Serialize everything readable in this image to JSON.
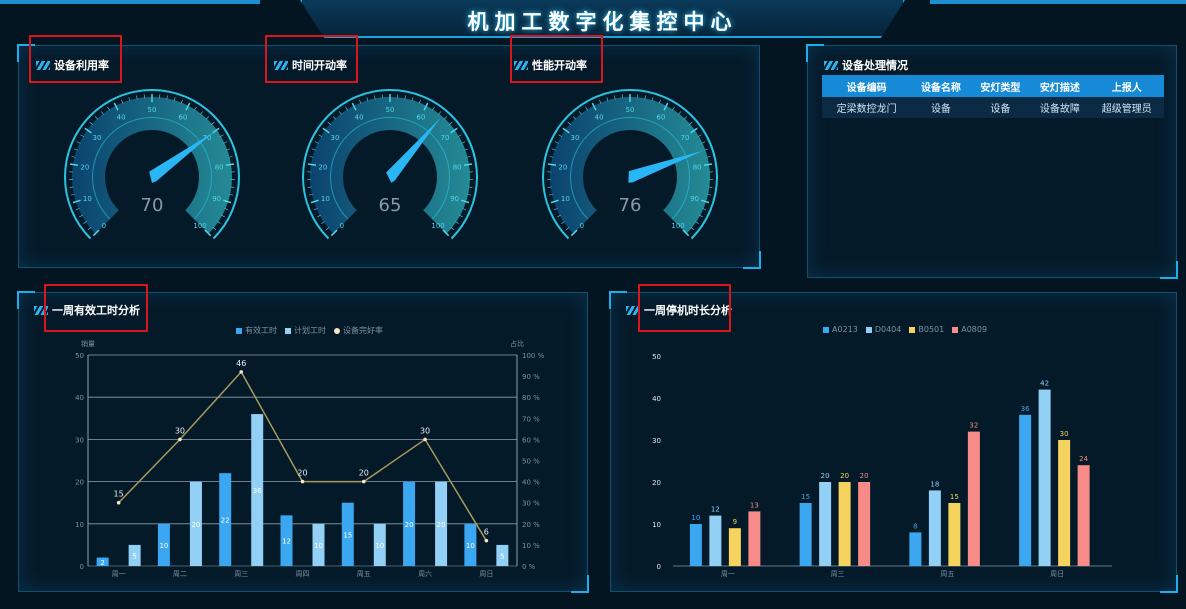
{
  "header": {
    "title": "机加工数字化集控中心"
  },
  "gauges": [
    {
      "title": "设备利用率",
      "value": 70
    },
    {
      "title": "时间开动率",
      "value": 65
    },
    {
      "title": "性能开动率",
      "value": 76
    }
  ],
  "gauge_scale": {
    "min": 0,
    "max": 100,
    "ticks": [
      "0",
      "10",
      "20",
      "30",
      "40",
      "50",
      "60",
      "70",
      "80",
      "90",
      "100"
    ]
  },
  "table": {
    "title": "设备处理情况",
    "headers": [
      "设备编码",
      "设备名称",
      "安灯类型",
      "安灯描述",
      "上报人"
    ],
    "rows": [
      [
        "定梁数控龙门",
        "设备",
        "设备",
        "设备故障",
        "超级管理员"
      ]
    ]
  },
  "colors": {
    "accent": "#1aa3e0",
    "blue": "#3aa7f0",
    "lightblue": "#93d0f5",
    "yellow": "#f5d35e",
    "pink": "#f78b87",
    "line": "#a89a5c"
  },
  "chart_data": [
    {
      "type": "bar",
      "title": "一周有效工时分析",
      "ylabel": "销量",
      "y2label": "占比",
      "categories": [
        "周一",
        "周二",
        "周三",
        "周四",
        "周五",
        "周六",
        "周日"
      ],
      "ylim": [
        0,
        50
      ],
      "y2lim": [
        0,
        100
      ],
      "yticks": [
        "0",
        "10",
        "20",
        "30",
        "40",
        "50"
      ],
      "y2ticks": [
        "0 %",
        "10 %",
        "20 %",
        "30 %",
        "40 %",
        "50 %",
        "60 %",
        "70 %",
        "80 %",
        "90 %",
        "100 %"
      ],
      "grid": true,
      "legend": "top",
      "series": [
        {
          "name": "有效工时",
          "type": "bar",
          "values": [
            2,
            10,
            22,
            12,
            15,
            20,
            10
          ]
        },
        {
          "name": "计划工时",
          "type": "bar",
          "values": [
            5,
            20,
            36,
            10,
            10,
            20,
            5
          ]
        },
        {
          "name": "设备完好率",
          "type": "line",
          "values": [
            15,
            30,
            46,
            20,
            20,
            30,
            6
          ]
        }
      ]
    },
    {
      "type": "bar",
      "title": "一周停机时长分析",
      "categories": [
        "周一",
        "周三",
        "周五",
        "周日"
      ],
      "ylim": [
        0,
        50
      ],
      "yticks": [
        "0",
        "10",
        "20",
        "30",
        "40",
        "50"
      ],
      "grid": false,
      "legend": "top",
      "series": [
        {
          "name": "A0213",
          "values": [
            10,
            15,
            8,
            36
          ]
        },
        {
          "name": "D0404",
          "values": [
            12,
            20,
            18,
            42
          ]
        },
        {
          "name": "B0501",
          "values": [
            9,
            20,
            15,
            30
          ]
        },
        {
          "name": "A0809",
          "values": [
            13,
            20,
            32,
            24
          ]
        }
      ]
    }
  ]
}
